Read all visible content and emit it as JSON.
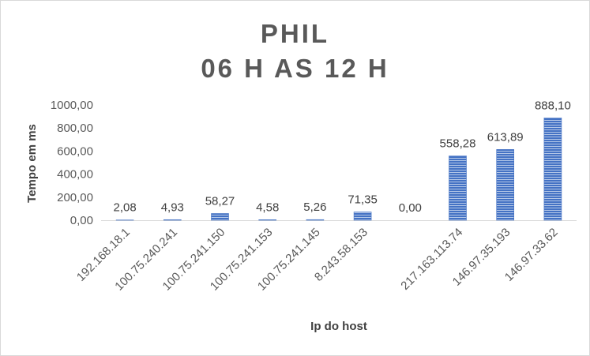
{
  "chart_data": {
    "type": "bar",
    "title": [
      "PHIL",
      "06 H AS 12 H"
    ],
    "xlabel": "Ip do host",
    "ylabel": "Tempo em ms",
    "categories": [
      "192.168.18.1",
      "100.75.240.241",
      "100.75.241.150",
      "100.75.241.153",
      "100.75.241.145",
      "8.243.58.153",
      "",
      "217.163.113.74",
      "146.97.35.193",
      "146.97.33.62"
    ],
    "values": [
      2.08,
      4.93,
      58.27,
      4.58,
      5.26,
      71.35,
      0.0,
      558.28,
      613.89,
      888.1
    ],
    "data_labels": [
      "2,08",
      "4,93",
      "58,27",
      "4,58",
      "5,26",
      "71,35",
      "0,00",
      "558,28",
      "613,89",
      "888,10"
    ],
    "ylim": [
      0,
      1000
    ],
    "yticks": [
      0,
      200,
      400,
      600,
      800,
      1000
    ],
    "ytick_labels": [
      "0,00",
      "200,00",
      "400,00",
      "600,00",
      "800,00",
      "1000,00"
    ],
    "grid": false,
    "legend": "none",
    "bar_color": "#4472c4"
  }
}
